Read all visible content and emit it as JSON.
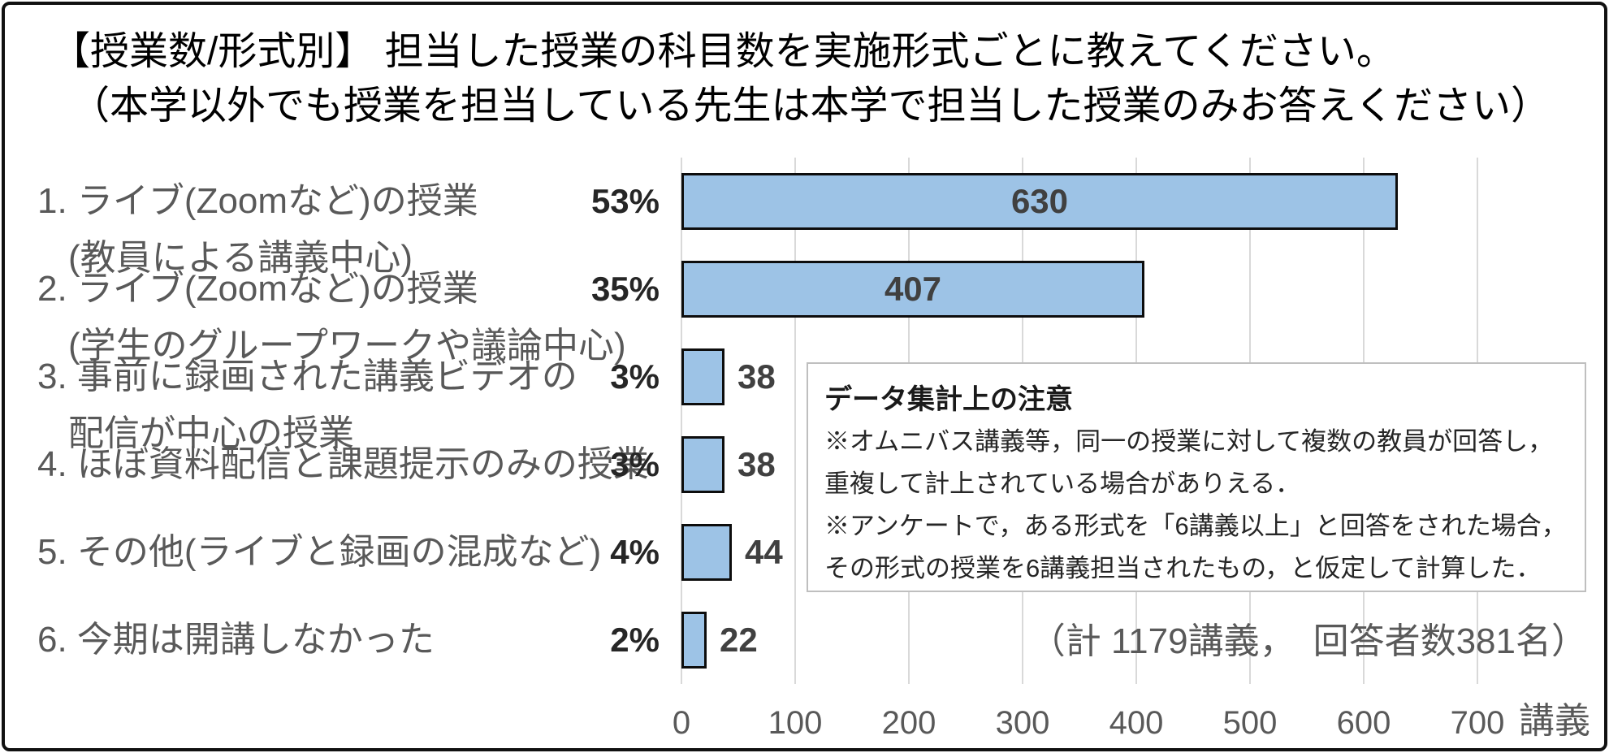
{
  "title": {
    "line1": "【授業数/形式別】 担当した授業の科目数を実施形式ごとに教えてください。",
    "line2": "（本学以外でも授業を担当している先生は本学で担当した授業のみお答えください）"
  },
  "chart_data": {
    "type": "bar",
    "orientation": "horizontal",
    "title": "【授業数/形式別】 担当した授業の科目数を実施形式ごとに教えてください。（本学以外でも授業を担当している先生は本学で担当した授業のみお答えください）",
    "categories": [
      "1. ライブ(Zoomなど)の授業 (教員による講義中心)",
      "2. ライブ(Zoomなど)の授業 (学生のグループワークや議論中心)",
      "3. 事前に録画された講義ビデオの配信が中心の授業",
      "4. ほぼ資料配信と課題提示のみの授業",
      "5. その他(ライブと録画の混成など)",
      "6. 今期は開講しなかった"
    ],
    "category_lines": [
      [
        "1. ライブ(Zoomなど)の授業",
        "(教員による講義中心)"
      ],
      [
        "2. ライブ(Zoomなど)の授業",
        "(学生のグループワークや議論中心)"
      ],
      [
        "3. 事前に録画された講義ビデオの",
        "配信が中心の授業"
      ],
      [
        "4. ほぼ資料配信と課題提示のみの授業"
      ],
      [
        "5. その他(ライブと録画の混成など)"
      ],
      [
        "6. 今期は開講しなかった"
      ]
    ],
    "values": [
      630,
      407,
      38,
      38,
      44,
      22
    ],
    "percent_labels": [
      "53%",
      "35%",
      "3%",
      "3%",
      "4%",
      "2%"
    ],
    "x_ticks": [
      "0",
      "100",
      "200",
      "300",
      "400",
      "500",
      "600",
      "700"
    ],
    "x_max": 800,
    "xlabel": "講義",
    "grid": true,
    "legend_position": "none",
    "bar_color": "#9DC3E6",
    "bar_border_color": "#0D0D0D",
    "value_label_inside_threshold": 100
  },
  "note_box": {
    "title": "データ集計上の注意",
    "lines": [
      "※オムニバス講義等，同一の授業に対して複数の教員が回答し，",
      "重複して計上されている場合がありえる．",
      "※アンケートで，ある形式を「6講義以上」と回答をされた場合，",
      "その形式の授業を6講義担当されたもの，と仮定して計算した．"
    ]
  },
  "total_note": "（計 1179講義，　回答者数381名）"
}
